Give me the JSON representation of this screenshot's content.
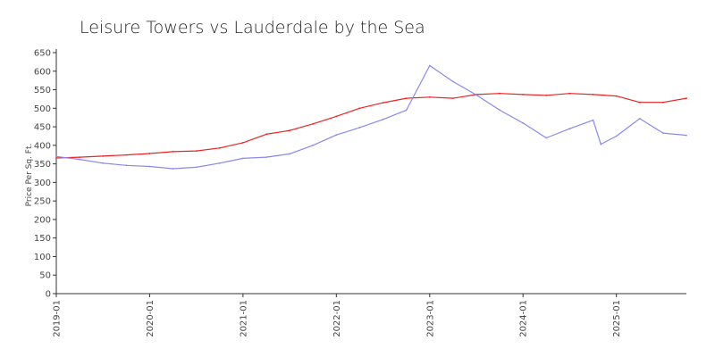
{
  "chart_data": {
    "type": "line",
    "title": "Leisure Towers vs Lauderdale by the Sea",
    "xlabel": "",
    "ylabel": "Price Per Sq. Ft.",
    "ylim": [
      0,
      650
    ],
    "yticks": [
      0,
      50,
      100,
      150,
      200,
      250,
      300,
      350,
      400,
      450,
      500,
      550,
      600,
      650
    ],
    "xlim": [
      "2019-01",
      "2025-10"
    ],
    "xticks": [
      "2019-01",
      "2020-01",
      "2021-01",
      "2022-01",
      "2023-01",
      "2024-01",
      "2025-01"
    ],
    "grid": false,
    "legend": "none",
    "series": [
      {
        "color": "#ee2222",
        "points": [
          [
            "2019-01",
            366
          ],
          [
            "2019-04",
            368
          ],
          [
            "2019-07",
            371
          ],
          [
            "2019-10",
            374
          ],
          [
            "2020-01",
            378
          ],
          [
            "2020-04",
            383
          ],
          [
            "2020-07",
            385
          ],
          [
            "2020-10",
            393
          ],
          [
            "2021-01",
            407
          ],
          [
            "2021-04",
            430
          ],
          [
            "2021-07",
            440
          ],
          [
            "2021-10",
            458
          ],
          [
            "2022-01",
            478
          ],
          [
            "2022-04",
            500
          ],
          [
            "2022-07",
            515
          ],
          [
            "2022-10",
            527
          ],
          [
            "2023-01",
            530
          ],
          [
            "2023-04",
            527
          ],
          [
            "2023-07",
            537
          ],
          [
            "2023-10",
            540
          ],
          [
            "2024-01",
            537
          ],
          [
            "2024-04",
            535
          ],
          [
            "2024-07",
            540
          ],
          [
            "2024-10",
            537
          ],
          [
            "2025-01",
            533
          ],
          [
            "2025-04",
            516
          ],
          [
            "2025-07",
            516
          ],
          [
            "2025-10",
            527
          ]
        ]
      },
      {
        "color": "#8888ee",
        "points": [
          [
            "2019-01",
            370
          ],
          [
            "2019-04",
            362
          ],
          [
            "2019-07",
            352
          ],
          [
            "2019-10",
            346
          ],
          [
            "2020-01",
            343
          ],
          [
            "2020-04",
            337
          ],
          [
            "2020-07",
            341
          ],
          [
            "2020-10",
            352
          ],
          [
            "2021-01",
            365
          ],
          [
            "2021-04",
            368
          ],
          [
            "2021-07",
            377
          ],
          [
            "2021-10",
            400
          ],
          [
            "2022-01",
            428
          ],
          [
            "2022-04",
            448
          ],
          [
            "2022-07",
            470
          ],
          [
            "2022-10",
            495
          ],
          [
            "2023-01",
            615
          ],
          [
            "2023-04",
            572
          ],
          [
            "2023-07",
            536
          ],
          [
            "2023-10",
            495
          ],
          [
            "2024-01",
            460
          ],
          [
            "2024-04",
            420
          ],
          [
            "2024-07",
            445
          ],
          [
            "2024-10",
            468
          ],
          [
            "2024-11",
            403
          ],
          [
            "2025-01",
            425
          ],
          [
            "2025-04",
            472
          ],
          [
            "2025-07",
            433
          ],
          [
            "2025-10",
            427
          ]
        ]
      }
    ]
  }
}
